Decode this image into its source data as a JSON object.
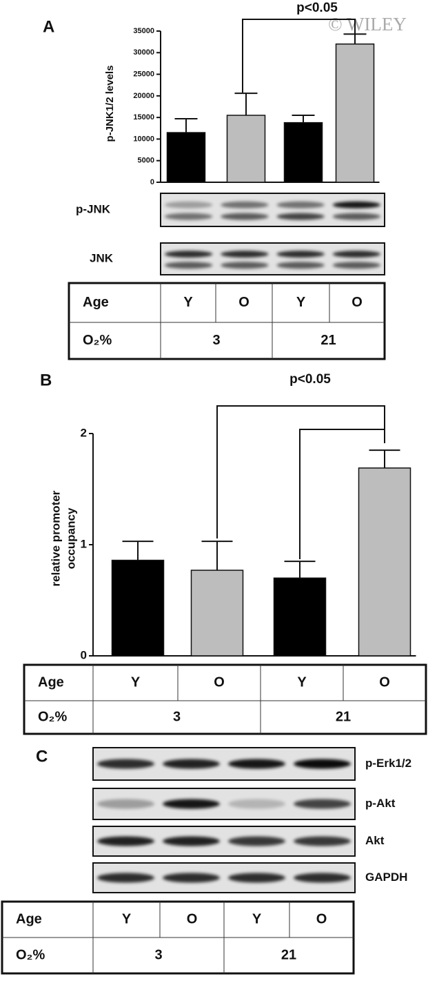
{
  "watermark": "© WILEY",
  "panels": [
    "A",
    "B",
    "C"
  ],
  "chart_data": [
    {
      "type": "bar",
      "y_label": "p-JNK1/2 levels",
      "categories": [
        null,
        null,
        null,
        null
      ],
      "values": [
        11500,
        15500,
        13800,
        32000
      ],
      "errors": [
        3200,
        5100,
        1700,
        2300
      ],
      "colors": [
        "#000000",
        "#bdbdbd",
        "#000000",
        "#bdbdbd"
      ],
      "ylim": [
        0,
        35000
      ],
      "yticks": [
        0,
        5000,
        10000,
        15000,
        20000,
        25000,
        30000,
        35000
      ],
      "annotation": "p<0.05"
    },
    {
      "type": "bar",
      "y_label": [
        "relative promoter",
        "occupancy"
      ],
      "categories": [
        null,
        null,
        null,
        null
      ],
      "values": [
        0.86,
        0.77,
        0.7,
        1.69
      ],
      "errors": [
        0.17,
        0.26,
        0.15,
        0.16
      ],
      "colors": [
        "#000000",
        "#bdbdbd",
        "#000000",
        "#bdbdbd"
      ],
      "ylim": [
        0,
        2
      ],
      "yticks": [
        0,
        1,
        2
      ],
      "annotation": "p<0.05"
    }
  ],
  "blots": [
    [
      "p-JNK",
      "JNK"
    ],
    [
      "p-Erk1/2",
      "p-Akt",
      "Akt",
      "GAPDH"
    ]
  ],
  "tables": [
    {
      "age": [
        "Age",
        "Y",
        "O",
        "Y",
        "O"
      ],
      "oxygen": [
        "O₂%",
        "3",
        "21"
      ]
    },
    {
      "age": [
        "Age",
        "Y",
        "O",
        "Y",
        "O"
      ],
      "oxygen": [
        "O₂%",
        "3",
        "21"
      ]
    },
    {
      "age": [
        "Age",
        "Y",
        "O",
        "Y",
        "O"
      ],
      "oxygen": [
        "O₂%",
        "3",
        "21"
      ]
    }
  ]
}
